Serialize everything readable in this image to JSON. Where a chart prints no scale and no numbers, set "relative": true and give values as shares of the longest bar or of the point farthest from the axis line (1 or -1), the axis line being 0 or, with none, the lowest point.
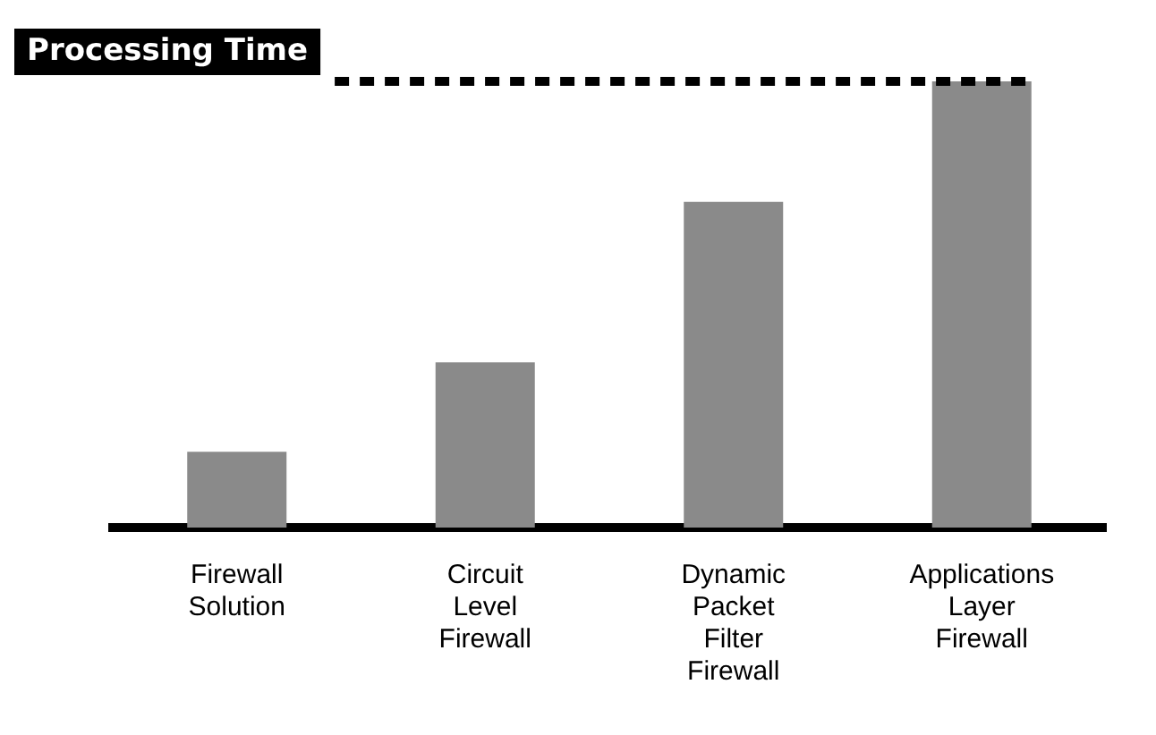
{
  "chart_data": {
    "type": "bar",
    "title": "Processing Time",
    "categories": [
      "Firewall Solution",
      "Circuit Level Firewall",
      "Dynamic Packet Filter Firewall",
      "Applications Layer Firewall"
    ],
    "values": [
      0.17,
      0.37,
      0.73,
      1
    ],
    "color": "#8a8a8a",
    "relative": true,
    "grid": false,
    "legend": false,
    "ref_lines": [
      {
        "axis": "y",
        "value": 1,
        "line_style": "dotted",
        "color": "#000000"
      }
    ]
  }
}
